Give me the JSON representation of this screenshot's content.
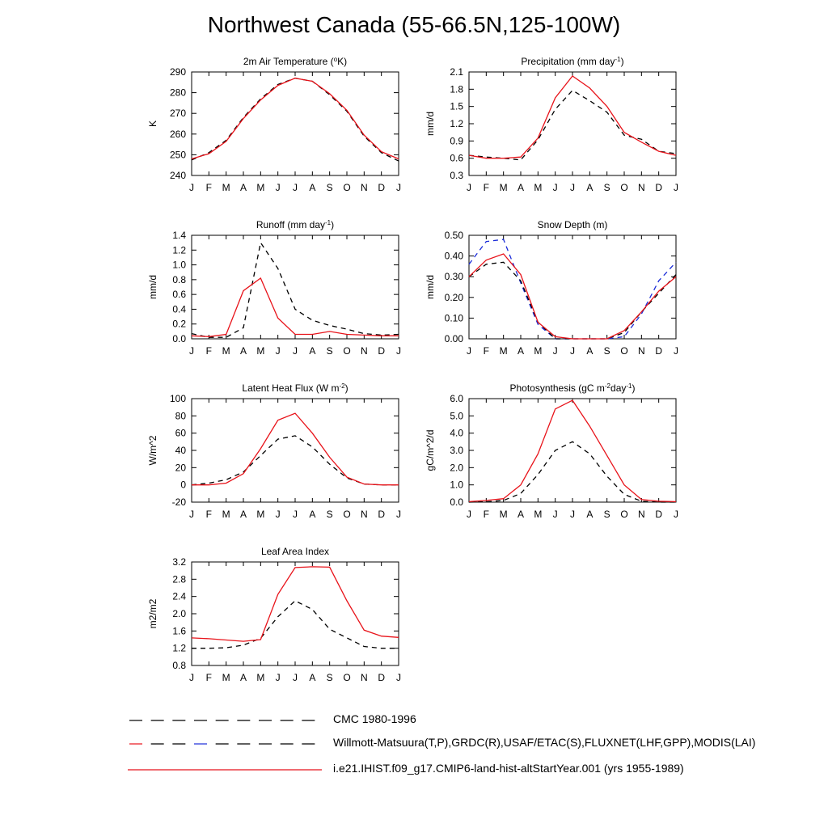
{
  "title": "Northwest Canada (55-66.5N,125-100W)",
  "colors": {
    "model": "#e8131a",
    "cmc": "#000000",
    "obs": "#1a2bd8"
  },
  "legend": [
    {
      "label": "CMC 1980-1996",
      "style": "dashed",
      "colors": [
        "#000000"
      ]
    },
    {
      "label": "Willmott-Matsuura(T,P),GRDC(R),USAF/ETAC(S),FLUXNET(LHF,GPP),MODIS(LAI)",
      "style": "dashed",
      "colors": [
        "#000000",
        "#e8131a",
        "#000000",
        "#1a2bd8",
        "#000000"
      ]
    },
    {
      "label": "i.e21.IHIST.f09_g17.CMIP6-land-hist-altStartYear.001 (yrs 1955-1989)",
      "style": "solid",
      "colors": [
        "#e8131a"
      ]
    }
  ],
  "chart_data": [
    {
      "type": "line",
      "title": "2m Air Temperature (°K)",
      "title_parts": [
        [
          "2m Air Temperature (",
          ""
        ],
        [
          "o",
          "sup"
        ],
        [
          "K)",
          ""
        ]
      ],
      "ylabel": "K",
      "xlabels": [
        "J",
        "F",
        "M",
        "A",
        "M",
        "J",
        "J",
        "A",
        "S",
        "O",
        "N",
        "D",
        "J"
      ],
      "ylim": [
        240,
        290
      ],
      "yticks": [
        "240",
        "250",
        "260",
        "270",
        "280",
        "290"
      ],
      "series": [
        {
          "style": "dashed",
          "color": "#000000",
          "values": [
            247.5,
            251,
            257,
            268,
            277,
            284,
            287,
            285.5,
            279,
            271,
            259,
            251,
            247
          ]
        },
        {
          "style": "solid",
          "color": "#e8131a",
          "values": [
            248,
            250.5,
            256.5,
            267.5,
            276.5,
            283.5,
            287,
            285.5,
            279.5,
            271.5,
            259.5,
            251.5,
            248
          ]
        }
      ]
    },
    {
      "type": "line",
      "title": "Precipitation (mm day-1)",
      "title_parts": [
        [
          "Precipitation (mm day",
          ""
        ],
        [
          "-1",
          "sup"
        ],
        [
          ")",
          ""
        ]
      ],
      "ylabel": "mm/d",
      "xlabels": [
        "J",
        "F",
        "M",
        "A",
        "M",
        "J",
        "J",
        "A",
        "S",
        "O",
        "N",
        "D",
        "J"
      ],
      "ylim": [
        0.3,
        2.1
      ],
      "yticks": [
        "0.3",
        "0.6",
        "0.9",
        "1.2",
        "1.5",
        "1.8",
        "2.1"
      ],
      "series": [
        {
          "style": "dashed",
          "color": "#000000",
          "values": [
            0.65,
            0.62,
            0.6,
            0.57,
            0.92,
            1.45,
            1.78,
            1.6,
            1.4,
            1.0,
            0.93,
            0.72,
            0.68
          ]
        },
        {
          "style": "solid",
          "color": "#e8131a",
          "values": [
            0.65,
            0.6,
            0.6,
            0.62,
            0.95,
            1.65,
            2.03,
            1.82,
            1.5,
            1.05,
            0.88,
            0.72,
            0.65
          ]
        }
      ]
    },
    {
      "type": "line",
      "title": "Runoff (mm day-1)",
      "title_parts": [
        [
          "Runoff (mm day",
          ""
        ],
        [
          "-1",
          "sup"
        ],
        [
          ")",
          ""
        ]
      ],
      "ylabel": "mm/d",
      "xlabels": [
        "J",
        "F",
        "M",
        "A",
        "M",
        "J",
        "J",
        "A",
        "S",
        "O",
        "N",
        "D",
        "J"
      ],
      "ylim": [
        0,
        1.4
      ],
      "yticks": [
        "0.0",
        "0.2",
        "0.4",
        "0.6",
        "0.8",
        "1.0",
        "1.2",
        "1.4"
      ],
      "series": [
        {
          "style": "dashed",
          "color": "#000000",
          "values": [
            0.07,
            0.02,
            0.02,
            0.15,
            1.3,
            0.95,
            0.4,
            0.25,
            0.18,
            0.13,
            0.07,
            0.05,
            0.06
          ]
        },
        {
          "style": "solid",
          "color": "#e8131a",
          "values": [
            0.04,
            0.03,
            0.06,
            0.65,
            0.82,
            0.28,
            0.06,
            0.06,
            0.1,
            0.06,
            0.05,
            0.04,
            0.04
          ]
        }
      ]
    },
    {
      "type": "line",
      "title": "Snow Depth (m)",
      "title_parts": [
        [
          "Snow Depth (m)",
          ""
        ]
      ],
      "ylabel": "mm/d",
      "xlabels": [
        "J",
        "F",
        "M",
        "A",
        "M",
        "J",
        "J",
        "A",
        "S",
        "O",
        "N",
        "D",
        "J"
      ],
      "ylim": [
        0,
        0.5
      ],
      "yticks": [
        "0.00",
        "0.10",
        "0.20",
        "0.30",
        "0.40",
        "0.50"
      ],
      "series": [
        {
          "style": "dashed",
          "color": "#1a2bd8",
          "values": [
            0.36,
            0.47,
            0.48,
            0.27,
            0.07,
            0.0,
            0.0,
            0.0,
            0.0,
            0.01,
            0.12,
            0.28,
            0.37
          ]
        },
        {
          "style": "dashed",
          "color": "#000000",
          "values": [
            0.3,
            0.36,
            0.37,
            0.28,
            0.08,
            0.0,
            0.0,
            0.0,
            0.0,
            0.03,
            0.13,
            0.22,
            0.31
          ]
        },
        {
          "style": "solid",
          "color": "#e8131a",
          "values": [
            0.3,
            0.38,
            0.41,
            0.31,
            0.08,
            0.01,
            0.0,
            0.0,
            0.0,
            0.04,
            0.13,
            0.23,
            0.3
          ]
        }
      ]
    },
    {
      "type": "line",
      "title": "Latent Heat Flux (W m-2)",
      "title_parts": [
        [
          "Latent Heat Flux (W m",
          ""
        ],
        [
          "-2",
          "sup"
        ],
        [
          ")",
          ""
        ]
      ],
      "ylabel": "W/m^2",
      "xlabels": [
        "J",
        "F",
        "M",
        "A",
        "M",
        "J",
        "J",
        "A",
        "S",
        "O",
        "N",
        "D",
        "J"
      ],
      "ylim": [
        -20,
        100
      ],
      "yticks": [
        "-20",
        "0",
        "20",
        "40",
        "60",
        "80",
        "100"
      ],
      "series": [
        {
          "style": "dashed",
          "color": "#000000",
          "values": [
            0,
            2,
            6,
            15,
            34,
            53,
            57,
            44,
            24,
            8,
            1,
            0,
            0
          ]
        },
        {
          "style": "solid",
          "color": "#e8131a",
          "values": [
            0,
            0,
            2,
            13,
            42,
            75,
            83,
            60,
            32,
            9,
            1,
            0,
            0
          ]
        }
      ]
    },
    {
      "type": "line",
      "title": "Photosynthesis (gC m-2day-1)",
      "title_parts": [
        [
          "Photosynthesis (gC m",
          ""
        ],
        [
          "-2",
          "sup"
        ],
        [
          "day",
          ""
        ],
        [
          "-1",
          "sup"
        ],
        [
          ")",
          ""
        ]
      ],
      "ylabel": "gC/m^2/d",
      "xlabels": [
        "J",
        "F",
        "M",
        "A",
        "M",
        "J",
        "J",
        "A",
        "S",
        "O",
        "N",
        "D",
        "J"
      ],
      "ylim": [
        0,
        6
      ],
      "yticks": [
        "0.0",
        "1.0",
        "2.0",
        "3.0",
        "4.0",
        "5.0",
        "6.0"
      ],
      "series": [
        {
          "style": "dashed",
          "color": "#000000",
          "values": [
            0,
            0.02,
            0.1,
            0.5,
            1.6,
            3.0,
            3.5,
            2.8,
            1.5,
            0.45,
            0.05,
            0.0,
            0.0
          ]
        },
        {
          "style": "solid",
          "color": "#e8131a",
          "values": [
            0.03,
            0.1,
            0.2,
            1.0,
            2.8,
            5.4,
            5.9,
            4.4,
            2.7,
            1.0,
            0.15,
            0.05,
            0.03
          ]
        }
      ]
    },
    {
      "type": "line",
      "title": "Leaf Area Index",
      "title_parts": [
        [
          "Leaf Area Index",
          ""
        ]
      ],
      "ylabel": "m2/m2",
      "xlabels": [
        "J",
        "F",
        "M",
        "A",
        "M",
        "J",
        "J",
        "A",
        "S",
        "O",
        "N",
        "D",
        "J"
      ],
      "ylim": [
        0.8,
        3.2
      ],
      "yticks": [
        "0.8",
        "1.2",
        "1.6",
        "2.0",
        "2.4",
        "2.8",
        "3.2"
      ],
      "series": [
        {
          "style": "dashed",
          "color": "#000000",
          "values": [
            1.2,
            1.2,
            1.21,
            1.27,
            1.43,
            1.93,
            2.3,
            2.1,
            1.64,
            1.44,
            1.24,
            1.2,
            1.2
          ]
        },
        {
          "style": "solid",
          "color": "#e8131a",
          "values": [
            1.44,
            1.42,
            1.39,
            1.36,
            1.4,
            2.45,
            3.07,
            3.09,
            3.08,
            2.3,
            1.62,
            1.48,
            1.45
          ]
        }
      ]
    }
  ]
}
